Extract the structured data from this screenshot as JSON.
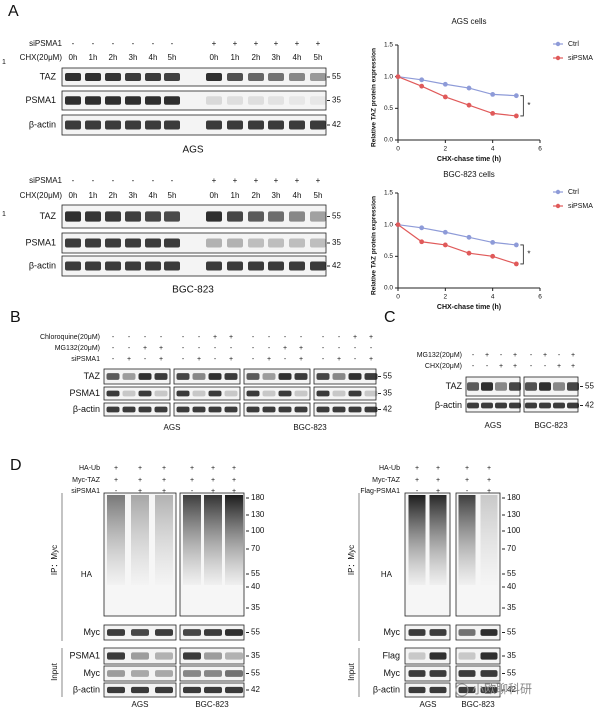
{
  "panel_labels": [
    "A",
    "B",
    "C",
    "D"
  ],
  "panel_a": {
    "blots": [
      {
        "treatments": [
          {
            "name": "siPSMA1",
            "marks": [
              "-",
              "-",
              "-",
              "-",
              "-",
              "-",
              "+",
              "+",
              "+",
              "+",
              "+",
              "+"
            ]
          },
          {
            "name": "CHX(20μM)",
            "marks": [
              "0h",
              "1h",
              "2h",
              "3h",
              "4h",
              "5h",
              "0h",
              "1h",
              "2h",
              "3h",
              "4h",
              "5h"
            ]
          }
        ],
        "stray_mark": "1",
        "rows": [
          {
            "name": "TAZ",
            "mw": "55"
          },
          {
            "name": "PSMA1",
            "mw": "35"
          },
          {
            "name": "β-actin",
            "mw": "42"
          }
        ],
        "cell_line": "AGS"
      },
      {
        "treatments": [
          {
            "name": "siPSMA1",
            "marks": [
              "-",
              "-",
              "-",
              "-",
              "-",
              "-",
              "+",
              "+",
              "+",
              "+",
              "+",
              "+"
            ]
          },
          {
            "name": "CHX(20μM)",
            "marks": [
              "0h",
              "1h",
              "2h",
              "3h",
              "4h",
              "5h",
              "0h",
              "1h",
              "2h",
              "3h",
              "4h",
              "5h"
            ]
          }
        ],
        "stray_mark": "1",
        "rows": [
          {
            "name": "TAZ",
            "mw": "55"
          },
          {
            "name": "PSMA1",
            "mw": "35"
          },
          {
            "name": "β-actin",
            "mw": "42"
          }
        ],
        "cell_line": "BGC-823"
      }
    ]
  },
  "chart_data": [
    {
      "type": "line",
      "title": "AGS cells",
      "x_label": "CHX-chase time (h)",
      "y_label": "Relative TAZ protein expression",
      "x": [
        0,
        1,
        2,
        3,
        4,
        5
      ],
      "xlim": [
        0,
        6
      ],
      "xticks": [
        0,
        2,
        4,
        6
      ],
      "ylim": [
        0,
        1.5
      ],
      "yticks": [
        {
          "value": 0,
          "label": "0.0"
        },
        0.5,
        {
          "value": 1,
          "label": "1.0"
        },
        1.5
      ],
      "series": [
        {
          "name": "Ctrl",
          "color": "#8e9bd8",
          "values": [
            1.0,
            0.95,
            0.88,
            0.82,
            0.72,
            0.7
          ]
        },
        {
          "name": "siPSMA",
          "color": "#e05a5a",
          "values": [
            1.0,
            0.85,
            0.68,
            0.55,
            0.42,
            0.38
          ]
        }
      ],
      "legend": "right",
      "annotation": "*"
    },
    {
      "type": "line",
      "title": "BGC-823 cells",
      "x_label": "CHX-chase time (h)",
      "y_label": "Relative TAZ protein expression",
      "x": [
        0,
        1,
        2,
        3,
        4,
        5
      ],
      "xlim": [
        0,
        6
      ],
      "xticks": [
        0,
        2,
        4,
        6
      ],
      "ylim": [
        0,
        1.5
      ],
      "yticks": [
        {
          "value": 0,
          "label": "0.0"
        },
        0.5,
        {
          "value": 1,
          "label": "1.0"
        },
        1.5
      ],
      "series": [
        {
          "name": "Ctrl",
          "color": "#8e9bd8",
          "values": [
            1.0,
            0.95,
            0.88,
            0.8,
            0.72,
            0.68
          ]
        },
        {
          "name": "siPSMA",
          "color": "#e05a5a",
          "values": [
            1.0,
            0.73,
            0.68,
            0.55,
            0.5,
            0.38
          ]
        }
      ],
      "legend": "right",
      "annotation": "*"
    }
  ],
  "panel_b": {
    "treatments": [
      {
        "name": "Chloroquine(20μM)",
        "marks": [
          "-",
          "-",
          "-",
          "-",
          "-",
          "-",
          "+",
          "+",
          "-",
          "-",
          "-",
          "-",
          "-",
          "-",
          "+",
          "+"
        ]
      },
      {
        "name": "MG132(20μM)",
        "marks": [
          "-",
          "-",
          "+",
          "+",
          "-",
          "-",
          "-",
          "-",
          "-",
          "-",
          "+",
          "+",
          "-",
          "-",
          "-",
          "-"
        ]
      },
      {
        "name": "siPSMA1",
        "marks": [
          "-",
          "+",
          "-",
          "+",
          "-",
          "+",
          "-",
          "+",
          "-",
          "+",
          "-",
          "+",
          "-",
          "+",
          "-",
          "+"
        ]
      }
    ],
    "rows": [
      {
        "name": "TAZ",
        "mw": "55"
      },
      {
        "name": "PSMA1",
        "mw": "35"
      },
      {
        "name": "β-actin",
        "mw": "42"
      }
    ],
    "cell_lines": [
      "AGS",
      "BGC-823"
    ]
  },
  "panel_c": {
    "treatments": [
      {
        "name": "MG132(20μM)",
        "marks": [
          "-",
          "+",
          "-",
          "+",
          "-",
          "+",
          "-",
          "+"
        ]
      },
      {
        "name": "CHX(20μM)",
        "marks": [
          "-",
          "-",
          "+",
          "+",
          "-",
          "-",
          "+",
          "+"
        ]
      }
    ],
    "rows": [
      {
        "name": "TAZ",
        "mw": "55"
      },
      {
        "name": "β-actin",
        "mw": "42"
      }
    ],
    "cell_lines": [
      "AGS",
      "BGC-823"
    ]
  },
  "panel_d": {
    "left": {
      "treatments": [
        {
          "name": "HA-Ub",
          "marks": [
            "+",
            "+",
            "+",
            "+",
            "+",
            "+"
          ]
        },
        {
          "name": "Myc-TAZ",
          "marks": [
            "+",
            "+",
            "+",
            "+",
            "+",
            "+"
          ]
        },
        {
          "name": "siPSMA1",
          "marks": [
            "-",
            "+",
            "+",
            "-",
            "+",
            "+"
          ]
        }
      ],
      "ladder": [
        "180",
        "130",
        "100",
        "70",
        "55",
        "40",
        "35"
      ],
      "ip_label": "IP：Myc",
      "blot_label": "HA",
      "ip_rows": [
        {
          "name": "Myc",
          "mw": "55"
        }
      ],
      "input_label": "Input",
      "input_rows": [
        {
          "name": "PSMA1",
          "mw": "35"
        },
        {
          "name": "Myc",
          "mw": "55"
        },
        {
          "name": "β-actin",
          "mw": "42"
        }
      ],
      "cell_lines": [
        "AGS",
        "BGC-823"
      ]
    },
    "right": {
      "treatments": [
        {
          "name": "HA-Ub",
          "marks": [
            "+",
            "+",
            "+",
            "+"
          ]
        },
        {
          "name": "Myc-TAZ",
          "marks": [
            "+",
            "+",
            "+",
            "+"
          ]
        },
        {
          "name": "Flag-PSMA1",
          "marks": [
            "-",
            "+",
            "-",
            "+"
          ]
        }
      ],
      "ladder": [
        "180",
        "130",
        "100",
        "70",
        "55",
        "40",
        "35"
      ],
      "ip_label": "IP：Myc",
      "blot_label": "HA",
      "ip_rows": [
        {
          "name": "Myc",
          "mw": "55"
        }
      ],
      "input_label": "Input",
      "input_rows": [
        {
          "name": "Flag",
          "mw": "35"
        },
        {
          "name": "Myc",
          "mw": "55"
        },
        {
          "name": "β-actin",
          "mw": "42"
        }
      ],
      "cell_lines": [
        "AGS",
        "BGC-823"
      ]
    }
  },
  "watermark": "小欧聊科研"
}
